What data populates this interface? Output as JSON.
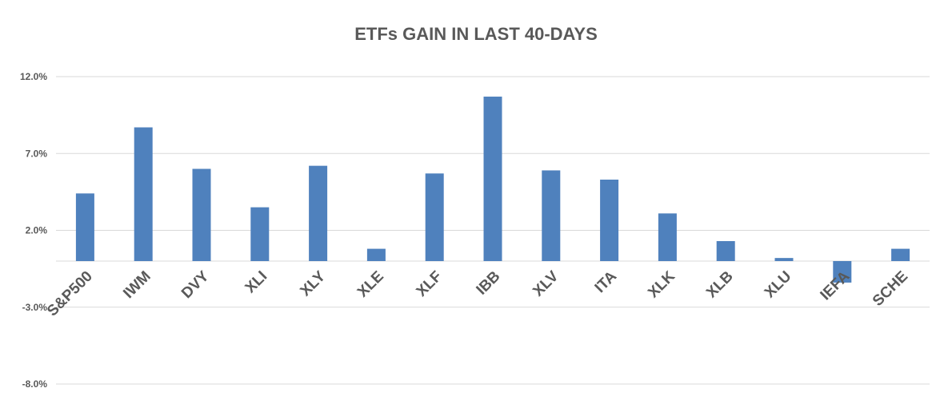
{
  "chart_data": {
    "type": "bar",
    "title": "ETFs GAIN IN LAST 40-DAYS",
    "xlabel": "",
    "ylabel": "",
    "categories": [
      "S&P500",
      "IWM",
      "DVY",
      "XLI",
      "XLY",
      "XLE",
      "XLF",
      "IBB",
      "XLV",
      "ITA",
      "XLK",
      "XLB",
      "XLU",
      "IEFA",
      "SCHE"
    ],
    "values": [
      4.4,
      8.7,
      6.0,
      3.5,
      6.2,
      0.8,
      5.7,
      10.7,
      5.9,
      5.3,
      3.1,
      1.3,
      0.2,
      -1.4,
      0.8
    ],
    "ylim": [
      -8.0,
      12.0
    ],
    "yticks": [
      12.0,
      7.0,
      2.0,
      -3.0,
      -8.0
    ],
    "ytick_labels": [
      "12.0%",
      "7.0%",
      "2.0%",
      "-3.0%",
      "-8.0%"
    ],
    "grid": true,
    "legend": "none",
    "bar_color": "#4f81bd"
  }
}
